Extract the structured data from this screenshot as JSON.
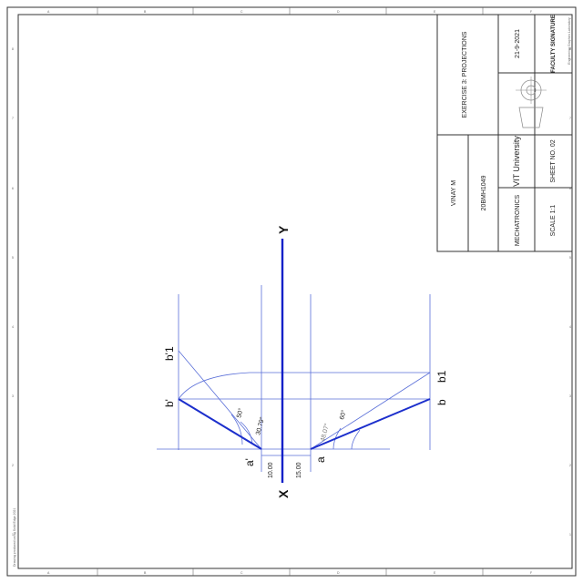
{
  "title_block": {
    "exercise": "EXERCISE 3: PROJECTIONS",
    "name": "VINAY M",
    "reg_no": "20BMH1049",
    "department": "MECHATRONICS",
    "university": "VIT University",
    "scale": "SCALE 1:1",
    "sheet": "SHEET NO. 02",
    "date": "21-9-2021",
    "signature_label": "FACULTY SIGNATURE",
    "lab": "Engineering Graphics Laboratory"
  },
  "drawing": {
    "label_x": "X",
    "label_y": "Y",
    "label_a": "a",
    "label_a_prime": "a'",
    "label_b": "b",
    "label_b1": "b1",
    "label_b_prime": "b'",
    "label_b1_prime": "b'1",
    "dim_1": "10.00",
    "dim_2": "15.00",
    "angle_1": "50°",
    "angle_2": "30.79°",
    "angle_3": "48.07°",
    "angle_4": "60°"
  },
  "border": {
    "zones_top": [
      "A",
      "B",
      "C",
      "D",
      "E",
      "F"
    ],
    "zones_side": [
      "8",
      "7",
      "6",
      "5",
      "4",
      "3",
      "2",
      "1"
    ],
    "side_note": "Drawing produced using Solid Edge 2021"
  },
  "colors": {
    "projection_line": "#5a6fd8",
    "object_line": "#1c2fcc",
    "reference_line": "#1020c8"
  }
}
